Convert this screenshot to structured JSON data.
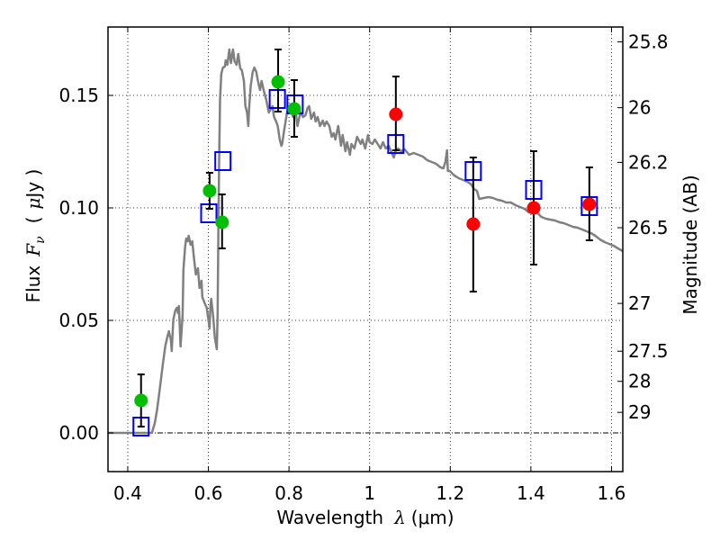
{
  "chart_data": {
    "type": "scatter",
    "title": "",
    "xlabel": "Wavelength  λ (μm)",
    "xlabel_parts": {
      "text": "Wavelength",
      "symbol": "λ",
      "unit": "(μm)"
    },
    "ylabel": "Flux  F_ν  ( μJy )",
    "ylabel_parts": {
      "text": "Flux",
      "symbol": "F",
      "subscript": "ν",
      "unit_open": "(",
      "unit_mu": "μ",
      "unit": "Jy )"
    },
    "y2label": "Magnitude (AB)",
    "xlim": [
      0.351,
      1.628
    ],
    "ylim": [
      -0.0172,
      0.1804
    ],
    "grid": true,
    "x_ticks": [
      {
        "value": 0.4,
        "label": "0.4"
      },
      {
        "value": 0.6,
        "label": "0.6"
      },
      {
        "value": 0.8,
        "label": "0.8"
      },
      {
        "value": 1.0,
        "label": "1"
      },
      {
        "value": 1.2,
        "label": "1.2"
      },
      {
        "value": 1.4,
        "label": "1.4"
      },
      {
        "value": 1.6,
        "label": "1.6"
      }
    ],
    "y_ticks": [
      {
        "value": 0.0,
        "label": "0.00"
      },
      {
        "value": 0.05,
        "label": "0.05"
      },
      {
        "value": 0.1,
        "label": "0.10"
      },
      {
        "value": 0.15,
        "label": "0.15"
      }
    ],
    "y2_ticks": [
      {
        "value": 25.8,
        "label": "25.8"
      },
      {
        "value": 26.0,
        "label": "26"
      },
      {
        "value": 26.2,
        "label": "26.2"
      },
      {
        "value": 26.5,
        "label": "26.5"
      },
      {
        "value": 27.0,
        "label": "27"
      },
      {
        "value": 27.5,
        "label": "27.5"
      },
      {
        "value": 28.0,
        "label": "28"
      },
      {
        "value": 29.0,
        "label": "29"
      }
    ],
    "y2_ab_zeropoint": 23.9,
    "zero_line": {
      "y": 0.0,
      "style": "dash-dot"
    },
    "colors": {
      "model": "#808080",
      "optical_points": "#00bf00",
      "nir_points": "#ff0000",
      "model_photometry": "#0000ff",
      "errorbars": "#000000",
      "grid": "#000000"
    },
    "series": [
      {
        "name": "model-spectrum",
        "kind": "line",
        "points": [
          [
            0.351,
            0.0
          ],
          [
            0.46,
            0.0
          ],
          [
            0.467,
            0.0044
          ],
          [
            0.473,
            0.0104
          ],
          [
            0.48,
            0.0204
          ],
          [
            0.487,
            0.0304
          ],
          [
            0.493,
            0.0384
          ],
          [
            0.498,
            0.0424
          ],
          [
            0.502,
            0.0452
          ],
          [
            0.507,
            0.0412
          ],
          [
            0.509,
            0.0364
          ],
          [
            0.513,
            0.0504
          ],
          [
            0.518,
            0.0544
          ],
          [
            0.522,
            0.0556
          ],
          [
            0.525,
            0.0532
          ],
          [
            0.527,
            0.0564
          ],
          [
            0.529,
            0.0476
          ],
          [
            0.531,
            0.0384
          ],
          [
            0.536,
            0.0524
          ],
          [
            0.538,
            0.0724
          ],
          [
            0.542,
            0.0824
          ],
          [
            0.545,
            0.0864
          ],
          [
            0.549,
            0.0852
          ],
          [
            0.551,
            0.0876
          ],
          [
            0.556,
            0.0836
          ],
          [
            0.56,
            0.0852
          ],
          [
            0.565,
            0.0764
          ],
          [
            0.569,
            0.0704
          ],
          [
            0.574,
            0.0732
          ],
          [
            0.578,
            0.0644
          ],
          [
            0.583,
            0.0676
          ],
          [
            0.585,
            0.0604
          ],
          [
            0.592,
            0.0572
          ],
          [
            0.596,
            0.0556
          ],
          [
            0.6,
            0.0504
          ],
          [
            0.603,
            0.0464
          ],
          [
            0.605,
            0.0564
          ],
          [
            0.607,
            0.0596
          ],
          [
            0.612,
            0.0516
          ],
          [
            0.616,
            0.0424
          ],
          [
            0.621,
            0.0372
          ],
          [
            0.623,
            0.0524
          ],
          [
            0.625,
            0.0924
          ],
          [
            0.627,
            0.1244
          ],
          [
            0.629,
            0.1484
          ],
          [
            0.632,
            0.1596
          ],
          [
            0.636,
            0.1624
          ],
          [
            0.641,
            0.1628
          ],
          [
            0.643,
            0.1656
          ],
          [
            0.647,
            0.1636
          ],
          [
            0.652,
            0.1704
          ],
          [
            0.656,
            0.1644
          ],
          [
            0.661,
            0.1704
          ],
          [
            0.665,
            0.1652
          ],
          [
            0.67,
            0.1636
          ],
          [
            0.674,
            0.1684
          ],
          [
            0.679,
            0.162
          ],
          [
            0.683,
            0.1612
          ],
          [
            0.688,
            0.1564
          ],
          [
            0.692,
            0.1452
          ],
          [
            0.696,
            0.1424
          ],
          [
            0.699,
            0.1364
          ],
          [
            0.701,
            0.1444
          ],
          [
            0.705,
            0.1544
          ],
          [
            0.71,
            0.1604
          ],
          [
            0.714,
            0.1624
          ],
          [
            0.719,
            0.1604
          ],
          [
            0.723,
            0.1564
          ],
          [
            0.728,
            0.1524
          ],
          [
            0.732,
            0.1564
          ],
          [
            0.737,
            0.1524
          ],
          [
            0.743,
            0.1484
          ],
          [
            0.75,
            0.1424
          ],
          [
            0.754,
            0.1436
          ],
          [
            0.759,
            0.1452
          ],
          [
            0.763,
            0.1404
          ],
          [
            0.768,
            0.1384
          ],
          [
            0.772,
            0.1364
          ],
          [
            0.777,
            0.1304
          ],
          [
            0.781,
            0.1276
          ],
          [
            0.783,
            0.1284
          ],
          [
            0.788,
            0.1344
          ],
          [
            0.795,
            0.1424
          ],
          [
            0.799,
            0.1452
          ],
          [
            0.804,
            0.1436
          ],
          [
            0.81,
            0.1404
          ],
          [
            0.817,
            0.1424
          ],
          [
            0.821,
            0.1364
          ],
          [
            0.828,
            0.1424
          ],
          [
            0.835,
            0.1404
          ],
          [
            0.841,
            0.1412
          ],
          [
            0.846,
            0.1444
          ],
          [
            0.85,
            0.1452
          ],
          [
            0.855,
            0.1396
          ],
          [
            0.862,
            0.1424
          ],
          [
            0.866,
            0.1384
          ],
          [
            0.871,
            0.1404
          ],
          [
            0.877,
            0.1364
          ],
          [
            0.884,
            0.1388
          ],
          [
            0.888,
            0.1364
          ],
          [
            0.893,
            0.1384
          ],
          [
            0.9,
            0.1364
          ],
          [
            0.906,
            0.1316
          ],
          [
            0.911,
            0.1332
          ],
          [
            0.915,
            0.1304
          ],
          [
            0.922,
            0.1364
          ],
          [
            0.929,
            0.1276
          ],
          [
            0.933,
            0.1324
          ],
          [
            0.94,
            0.1252
          ],
          [
            0.944,
            0.1292
          ],
          [
            0.951,
            0.1236
          ],
          [
            0.955,
            0.1284
          ],
          [
            0.962,
            0.1264
          ],
          [
            0.969,
            0.1316
          ],
          [
            0.978,
            0.1284
          ],
          [
            0.982,
            0.1304
          ],
          [
            0.989,
            0.1264
          ],
          [
            0.996,
            0.1324
          ],
          [
            1.0,
            0.1292
          ],
          [
            1.007,
            0.1284
          ],
          [
            1.013,
            0.1304
          ],
          [
            1.02,
            0.1284
          ],
          [
            1.027,
            0.1264
          ],
          [
            1.033,
            0.1292
          ],
          [
            1.04,
            0.1264
          ],
          [
            1.047,
            0.1276
          ],
          [
            1.054,
            0.1248
          ],
          [
            1.06,
            0.1224
          ],
          [
            1.065,
            0.1256
          ],
          [
            1.071,
            0.1264
          ],
          [
            1.078,
            0.1252
          ],
          [
            1.087,
            0.126
          ],
          [
            1.098,
            0.1236
          ],
          [
            1.109,
            0.1244
          ],
          [
            1.121,
            0.1236
          ],
          [
            1.132,
            0.1228
          ],
          [
            1.143,
            0.1212
          ],
          [
            1.154,
            0.1204
          ],
          [
            1.165,
            0.1196
          ],
          [
            1.176,
            0.118
          ],
          [
            1.183,
            0.1176
          ],
          [
            1.188,
            0.1204
          ],
          [
            1.192,
            0.1256
          ],
          [
            1.194,
            0.1164
          ],
          [
            1.199,
            0.1164
          ],
          [
            1.21,
            0.1144
          ],
          [
            1.221,
            0.1132
          ],
          [
            1.232,
            0.1124
          ],
          [
            1.243,
            0.1116
          ],
          [
            1.252,
            0.1104
          ],
          [
            1.259,
            0.1084
          ],
          [
            1.266,
            0.1076
          ],
          [
            1.272,
            0.104
          ],
          [
            1.283,
            0.1044
          ],
          [
            1.295,
            0.1048
          ],
          [
            1.306,
            0.1044
          ],
          [
            1.317,
            0.1036
          ],
          [
            1.328,
            0.1032
          ],
          [
            1.339,
            0.1024
          ],
          [
            1.35,
            0.1024
          ],
          [
            1.362,
            0.1012
          ],
          [
            1.373,
            0.1004
          ],
          [
            1.384,
            0.0996
          ],
          [
            1.395,
            0.098
          ],
          [
            1.406,
            0.0984
          ],
          [
            1.415,
            0.098
          ],
          [
            1.426,
            0.096
          ],
          [
            1.437,
            0.0952
          ],
          [
            1.448,
            0.0948
          ],
          [
            1.46,
            0.0944
          ],
          [
            1.471,
            0.0936
          ],
          [
            1.482,
            0.0932
          ],
          [
            1.493,
            0.0924
          ],
          [
            1.504,
            0.0916
          ],
          [
            1.516,
            0.0912
          ],
          [
            1.527,
            0.0904
          ],
          [
            1.538,
            0.0896
          ],
          [
            1.549,
            0.0888
          ],
          [
            1.56,
            0.0876
          ],
          [
            1.571,
            0.086
          ],
          [
            1.583,
            0.0848
          ],
          [
            1.594,
            0.084
          ],
          [
            1.605,
            0.0832
          ],
          [
            1.616,
            0.082
          ],
          [
            1.628,
            0.0808
          ]
        ]
      },
      {
        "name": "observed-optical",
        "kind": "circle",
        "color": "#00bf00",
        "points": [
          {
            "x": 0.433,
            "y": 0.0144,
            "err_lo": 0.0028,
            "err_hi": 0.026
          },
          {
            "x": 0.603,
            "y": 0.1076,
            "err_lo": 0.0996,
            "err_hi": 0.1156
          },
          {
            "x": 0.634,
            "y": 0.0936,
            "err_lo": 0.082,
            "err_hi": 0.106
          },
          {
            "x": 0.773,
            "y": 0.156,
            "err_lo": 0.1428,
            "err_hi": 0.1704
          },
          {
            "x": 0.813,
            "y": 0.144,
            "err_lo": 0.1316,
            "err_hi": 0.1568
          }
        ]
      },
      {
        "name": "observed-nir",
        "kind": "circle",
        "color": "#ff0000",
        "points": [
          {
            "x": 1.065,
            "y": 0.1416,
            "err_lo": 0.1256,
            "err_hi": 0.1584
          },
          {
            "x": 1.257,
            "y": 0.0928,
            "err_lo": 0.0628,
            "err_hi": 0.1224
          },
          {
            "x": 1.407,
            "y": 0.1,
            "err_lo": 0.0748,
            "err_hi": 0.1252
          },
          {
            "x": 1.545,
            "y": 0.1016,
            "err_lo": 0.0856,
            "err_hi": 0.118
          }
        ]
      },
      {
        "name": "model-photometry",
        "kind": "open-square",
        "color": "#0000ff",
        "points": [
          {
            "x": 0.433,
            "y": 0.0028
          },
          {
            "x": 0.601,
            "y": 0.0976
          },
          {
            "x": 0.636,
            "y": 0.1208
          },
          {
            "x": 0.771,
            "y": 0.1484
          },
          {
            "x": 0.815,
            "y": 0.146
          },
          {
            "x": 1.065,
            "y": 0.1284
          },
          {
            "x": 1.257,
            "y": 0.1164
          },
          {
            "x": 1.407,
            "y": 0.108
          },
          {
            "x": 1.545,
            "y": 0.1008
          }
        ]
      }
    ]
  }
}
